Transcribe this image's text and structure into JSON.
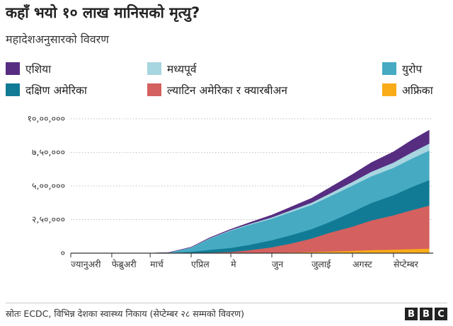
{
  "title": "कहाँ भयो १० लाख मानिसको मृत्यु?",
  "subtitle": "महादेशअनुसारको विवरण",
  "source": "स्रोतः ECDC, विभिन्न देशका स्वास्थ्य निकाय (सेप्टेम्बर २८ सम्मको विवरण)",
  "logo": [
    "B",
    "B",
    "C"
  ],
  "chart_data": {
    "type": "area",
    "stacked": true,
    "x": [
      "2020-01-01",
      "2020-02-01",
      "2020-03-01",
      "2020-03-15",
      "2020-04-01",
      "2020-04-15",
      "2020-05-01",
      "2020-05-15",
      "2020-06-01",
      "2020-06-15",
      "2020-07-01",
      "2020-07-15",
      "2020-08-01",
      "2020-08-15",
      "2020-09-01",
      "2020-09-15",
      "2020-09-28"
    ],
    "x_ticks": [
      "ज्यानुअरी",
      "फेब्रुअरी",
      "मार्च",
      "एप्रिल",
      "मे",
      "जुन",
      "जुलाई",
      "अगस्ट",
      "सेप्टेम्बर"
    ],
    "y_ticks": [
      "०",
      "२,५०,०००",
      "५,००,०००",
      "७,५०,०००",
      "१०,००,०००"
    ],
    "ylim": [
      0,
      1000000
    ],
    "series": [
      {
        "name": "अफ्रिका",
        "color": "#FAAB18",
        "values": [
          0,
          0,
          0,
          0,
          200,
          800,
          1500,
          2500,
          4000,
          6000,
          9000,
          13000,
          18000,
          23000,
          27000,
          31000,
          34000
        ]
      },
      {
        "name": "ल्याटिन अमेरिका र क्यारबीअन",
        "color": "#D4605F",
        "values": [
          0,
          0,
          0,
          200,
          1000,
          4000,
          8000,
          20000,
          40000,
          65000,
          100000,
          140000,
          180000,
          220000,
          255000,
          290000,
          320000
        ]
      },
      {
        "name": "दक्षिण अमेरिका",
        "color": "#117B96",
        "values": [
          0,
          0,
          100,
          1500,
          10000,
          20000,
          30000,
          40000,
          53000,
          62000,
          70000,
          80000,
          110000,
          130000,
          150000,
          172000,
          190000
        ]
      },
      {
        "name": "युरोप",
        "color": "#45AAC2",
        "values": [
          0,
          0,
          100,
          2000,
          30000,
          83000,
          128000,
          148000,
          160000,
          172000,
          180000,
          190000,
          195000,
          198000,
          203000,
          212000,
          220000
        ]
      },
      {
        "name": "मध्यपूर्व",
        "color": "#A7D5E0",
        "values": [
          0,
          0,
          100,
          600,
          2000,
          3500,
          5000,
          7000,
          10000,
          13000,
          17000,
          22000,
          28000,
          34000,
          40000,
          46000,
          52000
        ]
      },
      {
        "name": "एशिया",
        "color": "#562D81",
        "values": [
          0,
          0,
          300,
          700,
          2000,
          4000,
          6000,
          10000,
          17000,
          24000,
          33000,
          44000,
          56000,
          68000,
          80000,
          92000,
          100000
        ]
      }
    ]
  },
  "legend": [
    {
      "label": "एशिया",
      "color": "#562D81"
    },
    {
      "label": "मध्यपूर्व",
      "color": "#A7D5E0"
    },
    {
      "label": "युरोप",
      "color": "#45AAC2"
    },
    {
      "label": "दक्षिण अमेरिका",
      "color": "#117B96"
    },
    {
      "label": "ल्याटिन अमेरिका र क्यारबीअन",
      "color": "#D4605F"
    },
    {
      "label": "अफ्रिका",
      "color": "#FAAB18"
    }
  ]
}
